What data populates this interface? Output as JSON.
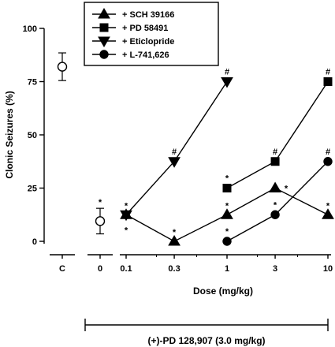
{
  "chart_data": {
    "type": "line",
    "ylabel": "Clonic Seizures (%)",
    "xlabel": "Dose  (mg/kg)",
    "ylim": [
      0,
      100
    ],
    "yticks": [
      0,
      25,
      50,
      75,
      100
    ],
    "categories": [
      "C",
      "0",
      "0.1",
      "0.3",
      "1",
      "3",
      "10"
    ],
    "x_scale": "log",
    "controls": [
      {
        "category": "C",
        "value": 82,
        "error": 6.5,
        "label": ""
      },
      {
        "category": "0",
        "value": 9.5,
        "error": 6,
        "label": "*"
      }
    ],
    "series": [
      {
        "name": "+ SCH 39166",
        "marker": "triangle-up",
        "points": [
          {
            "x": 0.1,
            "y": 12.5,
            "labels": [
              "*",
              "*"
            ]
          },
          {
            "x": 0.3,
            "y": 0,
            "labels": [
              "*"
            ]
          },
          {
            "x": 1,
            "y": 12.5,
            "labels": [
              "*"
            ]
          },
          {
            "x": 3,
            "y": 25,
            "labels": [
              "*"
            ]
          },
          {
            "x": 10,
            "y": 12.5,
            "labels": [
              "*"
            ]
          }
        ]
      },
      {
        "name": "+ PD 58491",
        "marker": "square",
        "points": [
          {
            "x": 1,
            "y": 25,
            "labels": [
              "*"
            ]
          },
          {
            "x": 3,
            "y": 37.5,
            "labels": [
              "#"
            ]
          },
          {
            "x": 10,
            "y": 75,
            "labels": [
              "#"
            ]
          }
        ]
      },
      {
        "name": "+ Eticlopride",
        "marker": "triangle-down",
        "points": [
          {
            "x": 0.1,
            "y": 12.5,
            "labels": []
          },
          {
            "x": 0.3,
            "y": 37.5,
            "labels": [
              "#"
            ]
          },
          {
            "x": 1,
            "y": 75,
            "labels": [
              "#"
            ]
          }
        ]
      },
      {
        "name": "+ L-741,626",
        "marker": "circle",
        "points": [
          {
            "x": 1,
            "y": 0,
            "labels": [
              "*"
            ]
          },
          {
            "x": 3,
            "y": 12.5,
            "labels": [
              "*"
            ]
          },
          {
            "x": 10,
            "y": 37.5,
            "labels": [
              "#"
            ]
          }
        ]
      }
    ],
    "note": "(+)-PD 128,907   (3.0 mg/kg)",
    "legend_position": "top"
  }
}
